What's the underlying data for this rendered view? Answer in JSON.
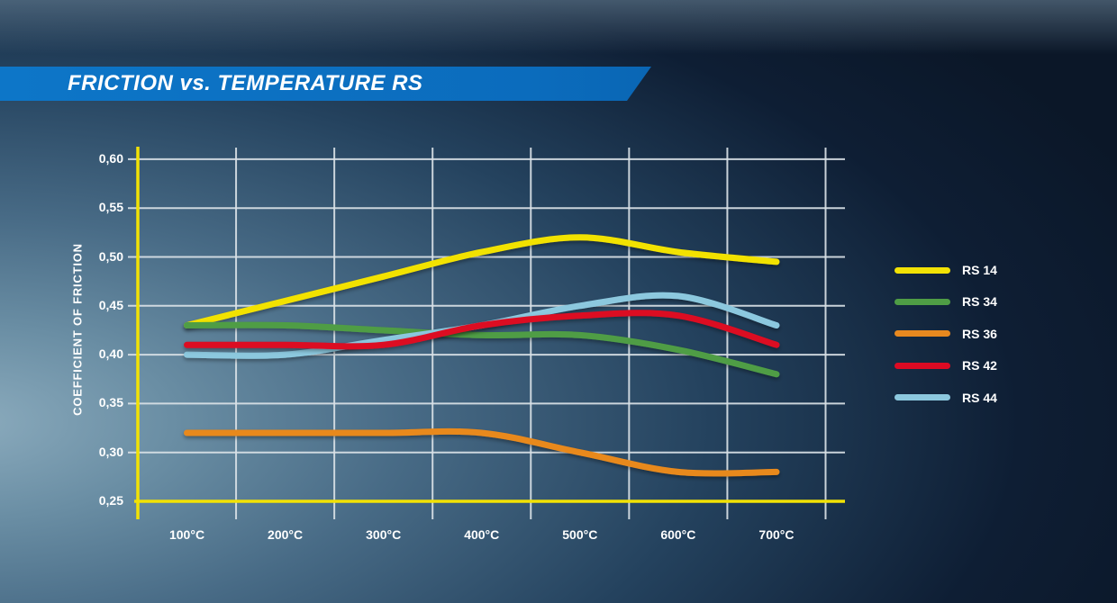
{
  "title": {
    "text": "FRICTION vs. TEMPERATURE RS"
  },
  "colors": {
    "banner_blue": "#0d76c8",
    "axis_yellow": "#f2e205",
    "gridline": "#d9e1e6",
    "text": "#ffffff",
    "background_dark": "#0b1728",
    "background_light": "#8babbd"
  },
  "chart_data": {
    "type": "line",
    "title": "FRICTION vs. TEMPERATURE RS",
    "xlabel": "",
    "ylabel": "COEFFICIENT OF FRICTION",
    "x": [
      100,
      200,
      300,
      400,
      500,
      600,
      700
    ],
    "x_ticks": [
      {
        "t": 100,
        "label": "100°C"
      },
      {
        "t": 200,
        "label": "200°C"
      },
      {
        "t": 300,
        "label": "300°C"
      },
      {
        "t": 400,
        "label": "400°C"
      },
      {
        "t": 500,
        "label": "500°C"
      },
      {
        "t": 600,
        "label": "600°C"
      },
      {
        "t": 700,
        "label": "700°C"
      }
    ],
    "y_ticks": [
      {
        "v": 0.6,
        "label": "0,60"
      },
      {
        "v": 0.55,
        "label": "0,55"
      },
      {
        "v": 0.5,
        "label": "0,50"
      },
      {
        "v": 0.45,
        "label": "0,45"
      },
      {
        "v": 0.4,
        "label": "0,40"
      },
      {
        "v": 0.35,
        "label": "0,35"
      },
      {
        "v": 0.3,
        "label": "0,30"
      },
      {
        "v": 0.25,
        "label": "0,25"
      }
    ],
    "ylim": [
      0.25,
      0.6
    ],
    "grid": true,
    "legend_position": "right",
    "series": [
      {
        "name": "RS 14",
        "color": "#f2e205",
        "values": [
          0.43,
          0.455,
          0.48,
          0.505,
          0.52,
          0.505,
          0.495
        ]
      },
      {
        "name": "RS 34",
        "color": "#4f9d45",
        "values": [
          0.43,
          0.43,
          0.425,
          0.42,
          0.42,
          0.405,
          0.38
        ]
      },
      {
        "name": "RS 36",
        "color": "#e8891f",
        "values": [
          0.32,
          0.32,
          0.32,
          0.32,
          0.3,
          0.28,
          0.28
        ]
      },
      {
        "name": "RS 42",
        "color": "#dc0a23",
        "values": [
          0.41,
          0.41,
          0.41,
          0.43,
          0.44,
          0.44,
          0.41
        ]
      },
      {
        "name": "RS 44",
        "color": "#8cc8de",
        "values": [
          0.4,
          0.4,
          0.415,
          0.43,
          0.45,
          0.46,
          0.43
        ]
      }
    ],
    "draw_order": [
      "RS 36",
      "RS 14",
      "RS 34",
      "RS 44",
      "RS 42"
    ]
  }
}
